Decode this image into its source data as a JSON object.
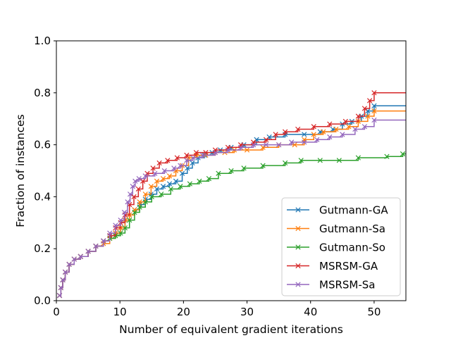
{
  "chart_data": {
    "type": "line",
    "step": true,
    "xlabel": "Number of equivalent gradient iterations",
    "ylabel": "Fraction of instances",
    "xlim": [
      0,
      55
    ],
    "ylim": [
      0,
      1
    ],
    "xticks": [
      0,
      10,
      20,
      30,
      40,
      50
    ],
    "yticks": [
      0.0,
      0.2,
      0.4,
      0.6,
      0.8,
      1.0
    ],
    "xtick_labels": [
      "0",
      "10",
      "20",
      "30",
      "40",
      "50"
    ],
    "ytick_labels": [
      "0.0",
      "0.2",
      "0.4",
      "0.6",
      "0.8",
      "1.0"
    ],
    "grid": false,
    "legend_position": "lower-right",
    "marker": "x",
    "series": [
      {
        "name": "Gutmann-GA",
        "color": "#1f77b4",
        "x": [
          0.5,
          0.7,
          1.0,
          1.4,
          2.0,
          2.8,
          3.8,
          5.0,
          6.2,
          7.4,
          8.4,
          9.3,
          10.1,
          10.8,
          11.5,
          12.3,
          13.1,
          14.0,
          14.9,
          15.8,
          16.8,
          17.8,
          18.8,
          19.8,
          20.6,
          21.4,
          22.3,
          23.3,
          24.5,
          25.8,
          27.5,
          29.5,
          31.5,
          33.5,
          36.0,
          39.0,
          41.5,
          43.5,
          45.0,
          46.5,
          48.0,
          49.0,
          50.0,
          55.0
        ],
        "y": [
          0.02,
          0.05,
          0.08,
          0.11,
          0.14,
          0.16,
          0.17,
          0.19,
          0.21,
          0.23,
          0.25,
          0.26,
          0.28,
          0.31,
          0.33,
          0.35,
          0.37,
          0.39,
          0.41,
          0.43,
          0.44,
          0.45,
          0.46,
          0.49,
          0.51,
          0.53,
          0.55,
          0.56,
          0.57,
          0.58,
          0.59,
          0.6,
          0.62,
          0.63,
          0.64,
          0.64,
          0.65,
          0.66,
          0.68,
          0.69,
          0.71,
          0.73,
          0.75,
          0.75
        ]
      },
      {
        "name": "Gutmann-Sa",
        "color": "#ff7f0e",
        "x": [
          0.5,
          0.7,
          1.0,
          1.4,
          2.0,
          2.8,
          3.8,
          5.0,
          6.2,
          7.4,
          8.4,
          9.3,
          10.1,
          10.8,
          11.5,
          12.3,
          13.1,
          14.0,
          14.9,
          15.8,
          16.8,
          17.8,
          18.8,
          19.8,
          20.8,
          22.0,
          23.5,
          25.0,
          26.5,
          28.0,
          30.0,
          32.5,
          35.0,
          37.5,
          39.0,
          40.5,
          42.0,
          44.0,
          46.0,
          47.5,
          49.0,
          50.0,
          55.0
        ],
        "y": [
          0.02,
          0.05,
          0.08,
          0.11,
          0.14,
          0.16,
          0.17,
          0.19,
          0.21,
          0.22,
          0.24,
          0.26,
          0.28,
          0.31,
          0.33,
          0.35,
          0.38,
          0.41,
          0.44,
          0.46,
          0.47,
          0.48,
          0.5,
          0.52,
          0.55,
          0.56,
          0.56,
          0.57,
          0.57,
          0.58,
          0.58,
          0.59,
          0.6,
          0.6,
          0.62,
          0.64,
          0.65,
          0.66,
          0.67,
          0.69,
          0.71,
          0.73,
          0.73
        ]
      },
      {
        "name": "Gutmann-So",
        "color": "#2ca02c",
        "x": [
          0.5,
          0.7,
          1.0,
          1.4,
          2.0,
          2.8,
          3.8,
          5.0,
          6.2,
          7.4,
          8.4,
          9.3,
          10.1,
          10.8,
          11.5,
          12.3,
          13.1,
          14.0,
          15.0,
          16.5,
          18.0,
          19.5,
          21.0,
          22.5,
          24.0,
          25.5,
          27.5,
          29.5,
          32.5,
          36.0,
          38.5,
          41.5,
          44.5,
          47.5,
          52.0,
          54.5,
          55.0
        ],
        "y": [
          0.02,
          0.05,
          0.08,
          0.11,
          0.14,
          0.16,
          0.17,
          0.19,
          0.21,
          0.23,
          0.24,
          0.25,
          0.26,
          0.28,
          0.31,
          0.34,
          0.36,
          0.38,
          0.4,
          0.41,
          0.43,
          0.44,
          0.45,
          0.46,
          0.47,
          0.49,
          0.5,
          0.51,
          0.52,
          0.53,
          0.54,
          0.54,
          0.54,
          0.55,
          0.555,
          0.565,
          0.565
        ]
      },
      {
        "name": "MSRSM-GA",
        "color": "#d62728",
        "x": [
          0.5,
          0.7,
          1.0,
          1.4,
          2.0,
          2.8,
          3.8,
          5.0,
          6.2,
          7.4,
          8.4,
          9.3,
          10.1,
          10.8,
          11.5,
          12.2,
          12.9,
          13.6,
          14.3,
          15.2,
          16.2,
          17.5,
          19.0,
          20.5,
          22.0,
          23.5,
          25.0,
          27.0,
          29.0,
          31.0,
          33.0,
          34.5,
          36.0,
          38.0,
          40.5,
          43.0,
          45.5,
          47.5,
          48.5,
          49.3,
          50.0,
          55.0
        ],
        "y": [
          0.02,
          0.05,
          0.08,
          0.11,
          0.14,
          0.16,
          0.17,
          0.19,
          0.21,
          0.23,
          0.25,
          0.28,
          0.3,
          0.33,
          0.37,
          0.4,
          0.43,
          0.46,
          0.49,
          0.51,
          0.53,
          0.54,
          0.55,
          0.56,
          0.57,
          0.57,
          0.58,
          0.59,
          0.6,
          0.61,
          0.62,
          0.64,
          0.65,
          0.66,
          0.67,
          0.68,
          0.69,
          0.71,
          0.74,
          0.77,
          0.8,
          0.8
        ]
      },
      {
        "name": "MSRSM-Sa",
        "color": "#9467bd",
        "x": [
          0.5,
          0.7,
          1.0,
          1.4,
          2.0,
          2.8,
          3.8,
          5.0,
          6.2,
          7.4,
          8.4,
          9.3,
          10.1,
          10.7,
          11.2,
          11.6,
          12.0,
          12.4,
          13.0,
          14.0,
          15.5,
          17.0,
          18.5,
          19.5,
          20.5,
          21.5,
          23.0,
          25.0,
          27.0,
          29.0,
          31.0,
          33.0,
          35.0,
          37.0,
          39.0,
          41.0,
          43.0,
          45.0,
          47.0,
          48.5,
          50.0,
          55.0
        ],
        "y": [
          0.02,
          0.05,
          0.08,
          0.11,
          0.14,
          0.16,
          0.17,
          0.19,
          0.21,
          0.23,
          0.26,
          0.29,
          0.31,
          0.34,
          0.38,
          0.41,
          0.44,
          0.46,
          0.47,
          0.48,
          0.49,
          0.5,
          0.51,
          0.52,
          0.54,
          0.55,
          0.56,
          0.57,
          0.58,
          0.59,
          0.6,
          0.6,
          0.6,
          0.61,
          0.61,
          0.62,
          0.63,
          0.64,
          0.66,
          0.67,
          0.695,
          0.695
        ]
      }
    ]
  }
}
